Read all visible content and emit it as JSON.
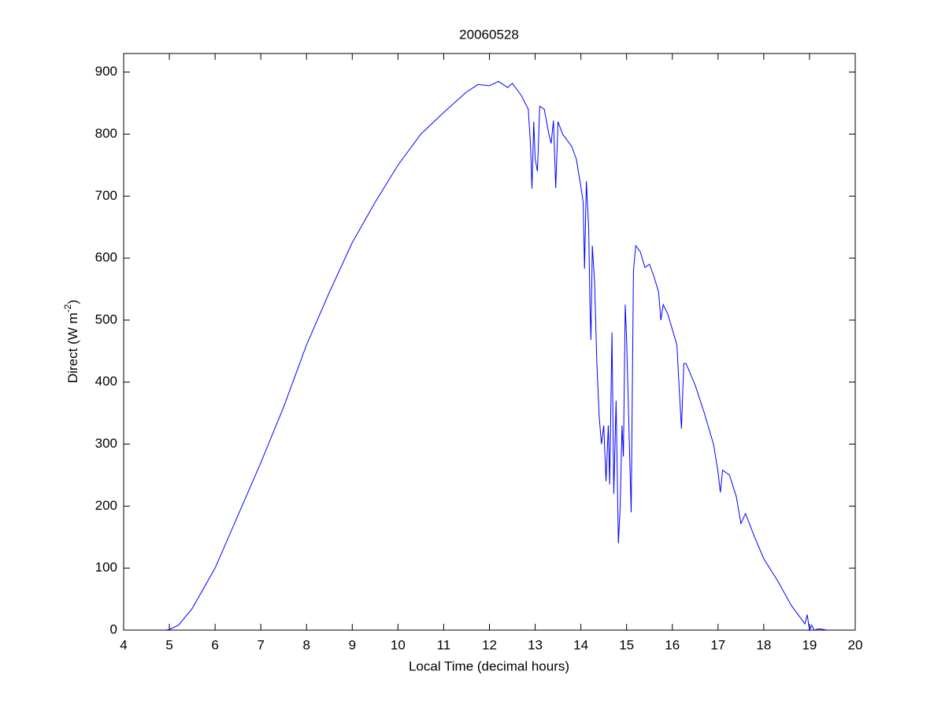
{
  "chart_data": {
    "type": "line",
    "title": "20060528",
    "xlabel": "Local Time (decimal hours)",
    "ylabel": [
      "Direct (W m",
      "-2",
      ")"
    ],
    "color": "#0000ff",
    "xlim": [
      4,
      20
    ],
    "xticks": [
      4,
      5,
      6,
      7,
      8,
      9,
      10,
      11,
      12,
      13,
      14,
      15,
      16,
      17,
      18,
      19,
      20
    ],
    "ylim": [
      0,
      930
    ],
    "yticks": [
      0,
      100,
      200,
      300,
      400,
      500,
      600,
      700,
      800,
      900
    ],
    "grid": false,
    "x": [
      4.9,
      5.0,
      5.2,
      5.5,
      6.0,
      6.5,
      7.0,
      7.5,
      8.0,
      8.5,
      9.0,
      9.5,
      10.0,
      10.5,
      11.0,
      11.5,
      11.75,
      12.0,
      12.2,
      12.4,
      12.5,
      12.7,
      12.85,
      12.9,
      12.93,
      12.97,
      13.0,
      13.05,
      13.1,
      13.2,
      13.3,
      13.35,
      13.4,
      13.45,
      13.5,
      13.6,
      13.7,
      13.8,
      13.9,
      14.0,
      14.05,
      14.08,
      14.12,
      14.17,
      14.2,
      14.22,
      14.25,
      14.3,
      14.35,
      14.4,
      14.45,
      14.5,
      14.55,
      14.6,
      14.63,
      14.68,
      14.72,
      14.77,
      14.82,
      14.86,
      14.9,
      14.93,
      14.97,
      15.0,
      15.05,
      15.1,
      15.15,
      15.2,
      15.3,
      15.4,
      15.5,
      15.6,
      15.7,
      15.75,
      15.8,
      15.9,
      16.0,
      16.1,
      16.15,
      16.2,
      16.25,
      16.3,
      16.5,
      16.7,
      16.9,
      17.0,
      17.05,
      17.1,
      17.25,
      17.4,
      17.5,
      17.6,
      17.8,
      18.0,
      18.3,
      18.6,
      18.9,
      18.95,
      19.0,
      19.05,
      19.1,
      19.2,
      19.4
    ],
    "values": [
      0,
      1,
      8,
      35,
      100,
      185,
      270,
      360,
      460,
      545,
      625,
      690,
      750,
      800,
      835,
      868,
      880,
      878,
      885,
      875,
      882,
      862,
      840,
      780,
      712,
      820,
      760,
      740,
      845,
      840,
      800,
      785,
      822,
      713,
      820,
      800,
      790,
      780,
      760,
      715,
      690,
      583,
      724,
      650,
      520,
      468,
      620,
      560,
      430,
      345,
      300,
      330,
      240,
      330,
      235,
      480,
      220,
      370,
      140,
      200,
      330,
      280,
      525,
      470,
      330,
      190,
      580,
      620,
      610,
      585,
      590,
      570,
      545,
      500,
      525,
      510,
      485,
      460,
      390,
      325,
      430,
      430,
      395,
      350,
      300,
      255,
      222,
      258,
      250,
      215,
      172,
      188,
      150,
      115,
      80,
      40,
      10,
      25,
      0,
      8,
      0,
      2,
      0
    ]
  }
}
